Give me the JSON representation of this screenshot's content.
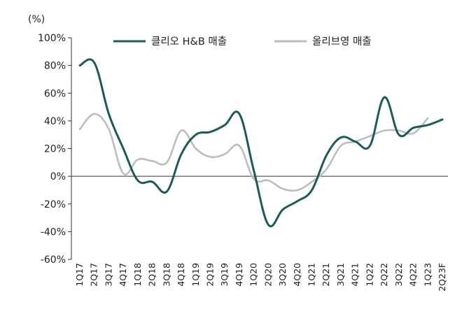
{
  "chart_data": {
    "type": "line",
    "y_unit_label": "(%)",
    "ylim": [
      -60,
      100
    ],
    "y_ticks": [
      100,
      80,
      60,
      40,
      20,
      0,
      -20,
      -40,
      -60
    ],
    "y_tick_labels": [
      "100%",
      "80%",
      "60%",
      "40%",
      "20%",
      "0%",
      "-20%",
      "-40%",
      "-60%"
    ],
    "grid": false,
    "legend_position": "top",
    "categories": [
      "1Q17",
      "2Q17",
      "3Q17",
      "4Q17",
      "1Q18",
      "2Q18",
      "3Q18",
      "4Q18",
      "1Q19",
      "2Q19",
      "3Q19",
      "4Q19",
      "1Q20",
      "2Q20",
      "3Q20",
      "4Q20",
      "1Q21",
      "2Q21",
      "3Q21",
      "4Q21",
      "1Q22",
      "2Q22",
      "3Q22",
      "4Q22",
      "1Q23",
      "2Q23F"
    ],
    "series": [
      {
        "name": "클리오 H&B 매출",
        "color": "#1d5c55",
        "values": [
          80,
          82,
          45,
          20,
          -3,
          -4,
          -11,
          16,
          30,
          32,
          37,
          45,
          4,
          -35,
          -24,
          -18,
          -10,
          15,
          28,
          25,
          22,
          57,
          30,
          35,
          37,
          41
        ]
      },
      {
        "name": "올리브영 매출",
        "color": "#bdbdbd",
        "values": [
          34,
          45,
          34,
          2,
          12,
          11,
          10,
          33,
          20,
          14,
          16,
          22,
          -2,
          -3,
          -9,
          -10,
          -4,
          5,
          22,
          25,
          29,
          33,
          33,
          31,
          42,
          null
        ]
      }
    ]
  }
}
